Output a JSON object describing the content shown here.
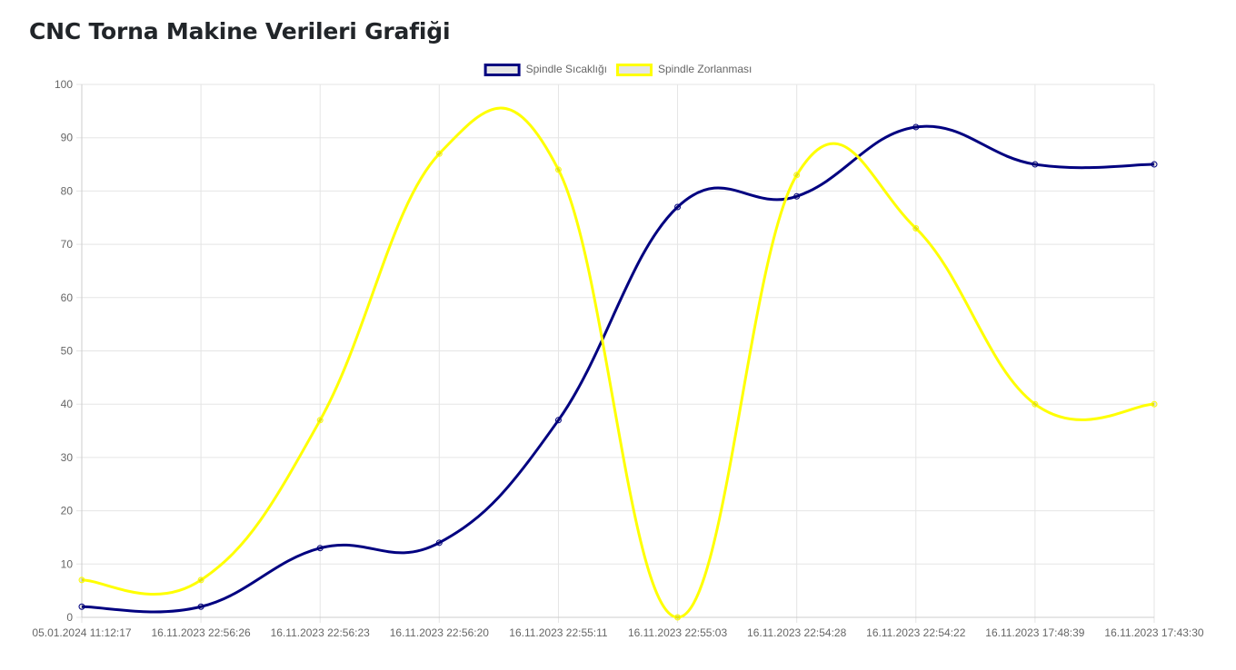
{
  "page": {
    "title": "CNC Torna Makine Verileri Grafiği"
  },
  "chart_data": {
    "type": "line",
    "title": "",
    "xlabel": "",
    "ylabel": "",
    "ylim": [
      0,
      100
    ],
    "yticks": [
      0,
      10,
      20,
      30,
      40,
      50,
      60,
      70,
      80,
      90,
      100
    ],
    "grid": true,
    "legend_position": "top",
    "categories": [
      "05.01.2024 11:12:17",
      "16.11.2023 22:56:26",
      "16.11.2023 22:56:23",
      "16.11.2023 22:56:20",
      "16.11.2023 22:55:11",
      "16.11.2023 22:55:03",
      "16.11.2023 22:54:28",
      "16.11.2023 22:54:22",
      "16.11.2023 17:48:39",
      "16.11.2023 17:43:30"
    ],
    "series": [
      {
        "name": "Spindle Sıcaklığı",
        "color": "#000080",
        "values": [
          2,
          2,
          13,
          14,
          37,
          77,
          79,
          92,
          85,
          85
        ]
      },
      {
        "name": "Spindle Zorlanması",
        "color": "#ffff00",
        "values": [
          7,
          7,
          37,
          87,
          84,
          0,
          83,
          73,
          40,
          40
        ]
      }
    ]
  }
}
